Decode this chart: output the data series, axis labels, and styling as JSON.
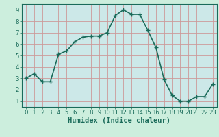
{
  "title": "",
  "xlabel": "Humidex (Indice chaleur)",
  "ylabel": "",
  "x_values": [
    0,
    1,
    2,
    3,
    4,
    5,
    6,
    7,
    8,
    9,
    10,
    11,
    12,
    13,
    14,
    15,
    16,
    17,
    18,
    19,
    20,
    21,
    22,
    23
  ],
  "y_values": [
    3.0,
    3.4,
    2.7,
    2.7,
    5.1,
    5.4,
    6.2,
    6.6,
    6.7,
    6.7,
    7.0,
    8.5,
    9.0,
    8.6,
    8.6,
    7.2,
    5.7,
    2.9,
    1.5,
    1.0,
    1.0,
    1.4,
    1.4,
    2.5
  ],
  "line_color": "#1a6b5a",
  "marker": "+",
  "marker_size": 4,
  "bg_color": "#cceedd",
  "grid_color": "#cc9999",
  "axis_bg_color": "#cce8e8",
  "tick_color": "#1a6b5a",
  "label_color": "#1a6b5a",
  "xlim": [
    -0.5,
    23.5
  ],
  "ylim": [
    0.5,
    9.5
  ],
  "yticks": [
    1,
    2,
    3,
    4,
    5,
    6,
    7,
    8,
    9
  ],
  "xticks": [
    0,
    1,
    2,
    3,
    4,
    5,
    6,
    7,
    8,
    9,
    10,
    11,
    12,
    13,
    14,
    15,
    16,
    17,
    18,
    19,
    20,
    21,
    22,
    23
  ],
  "font_size": 6.5,
  "xlabel_fontsize": 7.5,
  "linewidth": 1.2,
  "marker_color": "#1a6b5a"
}
